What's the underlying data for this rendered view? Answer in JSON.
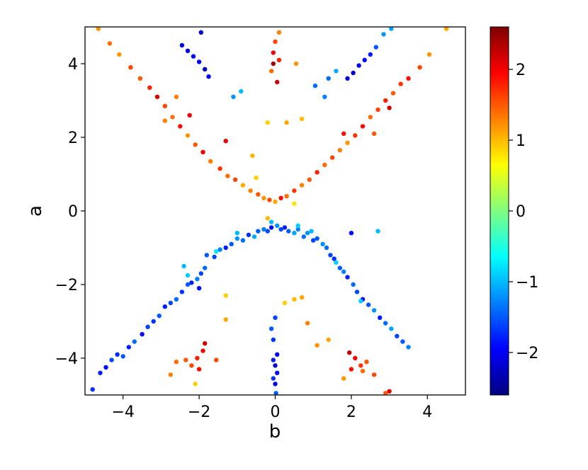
{
  "chart_data": {
    "type": "scatter",
    "title": "",
    "xlabel": "b",
    "ylabel": "a",
    "xlim": [
      -5,
      5
    ],
    "ylim": [
      -5,
      5
    ],
    "xticks": [
      -4,
      -2,
      0,
      2,
      4
    ],
    "yticks": [
      -4,
      -2,
      0,
      2,
      4
    ],
    "xtick_labels": [
      "−4",
      "−2",
      "0",
      "2",
      "4"
    ],
    "ytick_labels": [
      "−4",
      "−2",
      "0",
      "2",
      "4"
    ],
    "grid": false,
    "colormap": "jet",
    "colorbar": {
      "range": [
        -2.6,
        2.6
      ],
      "ticks": [
        -2,
        -1,
        0,
        1,
        2
      ],
      "tick_labels": [
        "−2",
        "−1",
        "0",
        "1",
        "2"
      ]
    },
    "points": [
      [
        -4.8,
        -4.85,
        -1.7
      ],
      [
        -4.6,
        -4.4,
        -1.8
      ],
      [
        -4.45,
        -4.25,
        -1.9
      ],
      [
        -4.3,
        -4.05,
        -1.6
      ],
      [
        -4.15,
        -3.9,
        -1.75
      ],
      [
        -4.0,
        -3.95,
        -1.5
      ],
      [
        -3.85,
        -3.7,
        -1.8
      ],
      [
        -3.7,
        -3.55,
        -1.4
      ],
      [
        -3.5,
        -3.35,
        -1.9
      ],
      [
        -3.35,
        -3.15,
        -1.6
      ],
      [
        -3.2,
        -3.0,
        -1.7
      ],
      [
        -3.05,
        -2.85,
        -1.5
      ],
      [
        -2.9,
        -2.6,
        -1.8
      ],
      [
        -2.75,
        -2.5,
        -1.6
      ],
      [
        -2.6,
        -2.4,
        -1.4
      ],
      [
        -2.45,
        -2.2,
        -1.7
      ],
      [
        -2.3,
        -2.0,
        -1.5
      ],
      [
        -2.2,
        -1.95,
        -1.8
      ],
      [
        -2.05,
        -1.85,
        -1.3
      ],
      [
        -1.95,
        -1.7,
        -1.6
      ],
      [
        -1.85,
        -1.55,
        -1.4
      ],
      [
        -2.4,
        -1.5,
        -1.0
      ],
      [
        -2.0,
        -2.1,
        -1.9
      ],
      [
        -1.8,
        -1.2,
        -1.5
      ],
      [
        -1.6,
        -1.25,
        -1.6
      ],
      [
        -1.45,
        -1.05,
        -1.3
      ],
      [
        -1.3,
        -1.0,
        -1.8
      ],
      [
        -1.15,
        -0.9,
        -1.5
      ],
      [
        -1.0,
        -0.75,
        -1.2
      ],
      [
        -0.85,
        -0.8,
        -1.4
      ],
      [
        -0.7,
        -0.65,
        -1.7
      ],
      [
        -0.55,
        -0.7,
        -1.1
      ],
      [
        -0.45,
        -0.55,
        -1.5
      ],
      [
        -0.3,
        -0.5,
        -1.3
      ],
      [
        -0.2,
        -0.55,
        -1.6
      ],
      [
        -0.1,
        -0.45,
        -1.9
      ],
      [
        0.05,
        -0.4,
        -1.2
      ],
      [
        0.15,
        -0.5,
        -1.6
      ],
      [
        0.25,
        -0.45,
        -1.8
      ],
      [
        0.35,
        -0.55,
        -1.5
      ],
      [
        0.5,
        -0.6,
        -1.1
      ],
      [
        0.6,
        -0.5,
        -1.3
      ],
      [
        0.75,
        -0.7,
        -1.4
      ],
      [
        0.85,
        -0.6,
        -1.2
      ],
      [
        1.0,
        -0.8,
        -1.6
      ],
      [
        1.1,
        -0.75,
        -1.5
      ],
      [
        1.25,
        -0.9,
        -1.2
      ],
      [
        1.35,
        -1.0,
        -1.4
      ],
      [
        1.45,
        -1.2,
        -1.6
      ],
      [
        1.55,
        -1.3,
        -1.7
      ],
      [
        1.7,
        -1.55,
        -1.5
      ],
      [
        1.8,
        -1.65,
        -1.3
      ],
      [
        1.9,
        -1.8,
        -1.8
      ],
      [
        2.05,
        -2.0,
        -1.4
      ],
      [
        2.15,
        -2.2,
        -1.6
      ],
      [
        2.3,
        -2.4,
        -1.9
      ],
      [
        2.45,
        -2.55,
        -1.5
      ],
      [
        2.6,
        -2.7,
        -1.2
      ],
      [
        2.75,
        -2.9,
        -1.8
      ],
      [
        2.9,
        -3.05,
        -1.4
      ],
      [
        3.05,
        -3.2,
        -1.1
      ],
      [
        3.2,
        -3.4,
        -1.6
      ],
      [
        3.35,
        -3.55,
        -1.5
      ],
      [
        3.5,
        -3.7,
        -1.3
      ],
      [
        2.7,
        -0.55,
        -1.0
      ],
      [
        2.0,
        -0.6,
        -1.9
      ],
      [
        0.95,
        -0.55,
        -1.0
      ],
      [
        0.6,
        -0.4,
        -0.9
      ],
      [
        -0.1,
        -0.3,
        -1.0
      ],
      [
        -1.0,
        -0.6,
        -1.0
      ],
      [
        -2.3,
        -1.75,
        -0.9
      ],
      [
        -1.55,
        -1.1,
        -0.8
      ],
      [
        1.6,
        -1.4,
        -0.9
      ],
      [
        2.25,
        -2.45,
        -0.9
      ],
      [
        -0.1,
        -3.2,
        -1.5
      ],
      [
        -0.05,
        -3.5,
        -1.7
      ],
      [
        0.05,
        -3.9,
        -2.0
      ],
      [
        -0.05,
        -4.05,
        -1.8
      ],
      [
        0.0,
        -4.2,
        -2.2
      ],
      [
        0.05,
        -4.4,
        -1.9
      ],
      [
        -0.05,
        -4.55,
        -1.7
      ],
      [
        0.0,
        -4.7,
        -2.1
      ],
      [
        0.02,
        -4.95,
        -1.5
      ],
      [
        0.0,
        -2.9,
        -1.6
      ],
      [
        -0.6,
        1.5,
        1.0
      ],
      [
        -0.2,
        2.4,
        0.9
      ],
      [
        0.3,
        2.4,
        1.1
      ],
      [
        -1.1,
        3.1,
        -1.2
      ],
      [
        1.3,
        3.1,
        -1.3
      ],
      [
        -0.9,
        3.25,
        -1.0
      ],
      [
        1.05,
        3.4,
        -1.4
      ],
      [
        -2.45,
        4.5,
        -2.0
      ],
      [
        -2.3,
        4.35,
        -2.2
      ],
      [
        -2.15,
        4.2,
        -1.9
      ],
      [
        -2.0,
        4.05,
        -2.1
      ],
      [
        -1.85,
        3.85,
        -2.3
      ],
      [
        -1.75,
        3.65,
        -2.0
      ],
      [
        -1.95,
        4.85,
        -2.2
      ],
      [
        1.9,
        3.6,
        -2.1
      ],
      [
        2.05,
        3.75,
        -2.2
      ],
      [
        2.2,
        3.95,
        -2.0
      ],
      [
        2.35,
        4.1,
        -1.9
      ],
      [
        2.5,
        4.25,
        -1.8
      ],
      [
        2.65,
        4.45,
        -1.5
      ],
      [
        2.85,
        4.8,
        -1.2
      ],
      [
        3.05,
        4.95,
        -1.1
      ],
      [
        1.4,
        3.6,
        -1.4
      ],
      [
        1.6,
        3.8,
        -1.1
      ],
      [
        0.1,
        4.85,
        1.3
      ],
      [
        0.0,
        4.6,
        1.6
      ],
      [
        -0.05,
        4.3,
        2.0
      ],
      [
        0.1,
        4.1,
        1.8
      ],
      [
        -0.1,
        3.8,
        1.4
      ],
      [
        0.05,
        3.5,
        2.2
      ],
      [
        -0.05,
        4.0,
        2.4
      ],
      [
        0.55,
        4.0,
        1.2
      ],
      [
        -4.65,
        4.95,
        1.2
      ],
      [
        -4.35,
        4.55,
        1.4
      ],
      [
        -4.1,
        4.25,
        1.2
      ],
      [
        -3.8,
        3.9,
        1.6
      ],
      [
        -3.55,
        3.6,
        1.5
      ],
      [
        -3.3,
        3.35,
        1.8
      ],
      [
        -3.1,
        3.1,
        2.1
      ],
      [
        -2.9,
        2.85,
        1.6
      ],
      [
        -2.7,
        2.55,
        1.4
      ],
      [
        -2.5,
        2.3,
        1.9
      ],
      [
        -2.3,
        2.05,
        1.2
      ],
      [
        -2.1,
        1.8,
        1.5
      ],
      [
        -1.9,
        1.6,
        2.0
      ],
      [
        -1.7,
        1.35,
        1.3
      ],
      [
        -1.45,
        1.15,
        1.7
      ],
      [
        -1.25,
        0.95,
        1.4
      ],
      [
        -1.05,
        0.85,
        1.6
      ],
      [
        -0.85,
        0.7,
        1.1
      ],
      [
        -0.65,
        0.55,
        1.3
      ],
      [
        -0.45,
        0.45,
        1.5
      ],
      [
        -0.3,
        0.35,
        1.2
      ],
      [
        -0.15,
        0.3,
        1.6
      ],
      [
        0.0,
        0.25,
        1.1
      ],
      [
        0.15,
        0.35,
        1.9
      ],
      [
        0.3,
        0.4,
        1.4
      ],
      [
        0.5,
        0.55,
        1.7
      ],
      [
        0.7,
        0.7,
        1.3
      ],
      [
        0.9,
        0.85,
        1.5
      ],
      [
        1.1,
        1.05,
        1.8
      ],
      [
        1.3,
        1.25,
        1.4
      ],
      [
        1.5,
        1.45,
        1.6
      ],
      [
        1.7,
        1.65,
        1.3
      ],
      [
        1.9,
        1.85,
        1.2
      ],
      [
        2.1,
        2.05,
        1.7
      ],
      [
        2.3,
        2.3,
        1.9
      ],
      [
        2.5,
        2.55,
        1.4
      ],
      [
        2.7,
        2.75,
        1.6
      ],
      [
        2.9,
        3.0,
        1.8
      ],
      [
        3.1,
        3.2,
        1.5
      ],
      [
        3.3,
        3.45,
        1.7
      ],
      [
        3.5,
        3.6,
        1.9
      ],
      [
        3.8,
        3.9,
        1.6
      ],
      [
        4.05,
        4.25,
        1.2
      ],
      [
        4.5,
        4.95,
        1.1
      ],
      [
        -2.6,
        3.1,
        1.3
      ],
      [
        -2.25,
        2.6,
        2.0
      ],
      [
        -1.3,
        1.9,
        2.1
      ],
      [
        -2.9,
        2.45,
        1.3
      ],
      [
        1.8,
        2.1,
        1.9
      ],
      [
        2.6,
        2.1,
        1.5
      ],
      [
        3.0,
        2.8,
        2.2
      ],
      [
        -0.5,
        0.9,
        0.9
      ],
      [
        0.5,
        0.2,
        0.8
      ],
      [
        -0.2,
        -0.2,
        1.0
      ],
      [
        0.7,
        2.5,
        1.0
      ],
      [
        -2.05,
        -4.0,
        1.8
      ],
      [
        -1.9,
        -3.8,
        2.0
      ],
      [
        -2.2,
        -4.2,
        1.6
      ],
      [
        -2.35,
        -4.05,
        1.5
      ],
      [
        -2.6,
        -4.1,
        1.4
      ],
      [
        -1.85,
        -3.6,
        2.2
      ],
      [
        -2.0,
        -4.3,
        1.9
      ],
      [
        -2.75,
        -4.45,
        1.3
      ],
      [
        -1.55,
        -4.05,
        1.6
      ],
      [
        -2.1,
        -4.7,
        0.9
      ],
      [
        1.95,
        -3.85,
        2.3
      ],
      [
        2.1,
        -4.0,
        2.0
      ],
      [
        2.25,
        -4.2,
        1.7
      ],
      [
        2.4,
        -4.1,
        1.5
      ],
      [
        2.0,
        -4.3,
        1.9
      ],
      [
        2.6,
        -4.45,
        1.6
      ],
      [
        2.3,
        -4.35,
        1.4
      ],
      [
        1.8,
        -4.55,
        1.2
      ],
      [
        2.9,
        -4.95,
        1.5
      ],
      [
        3.0,
        -4.9,
        2.1
      ],
      [
        1.4,
        -3.5,
        1.1
      ],
      [
        1.1,
        -3.65,
        1.2
      ],
      [
        0.85,
        -3.05,
        1.3
      ],
      [
        0.5,
        -2.4,
        1.0
      ],
      [
        0.25,
        -2.5,
        0.9
      ],
      [
        0.7,
        -2.35,
        1.1
      ],
      [
        -1.3,
        -2.95,
        1.1
      ],
      [
        -1.3,
        -2.3,
        0.9
      ]
    ]
  }
}
